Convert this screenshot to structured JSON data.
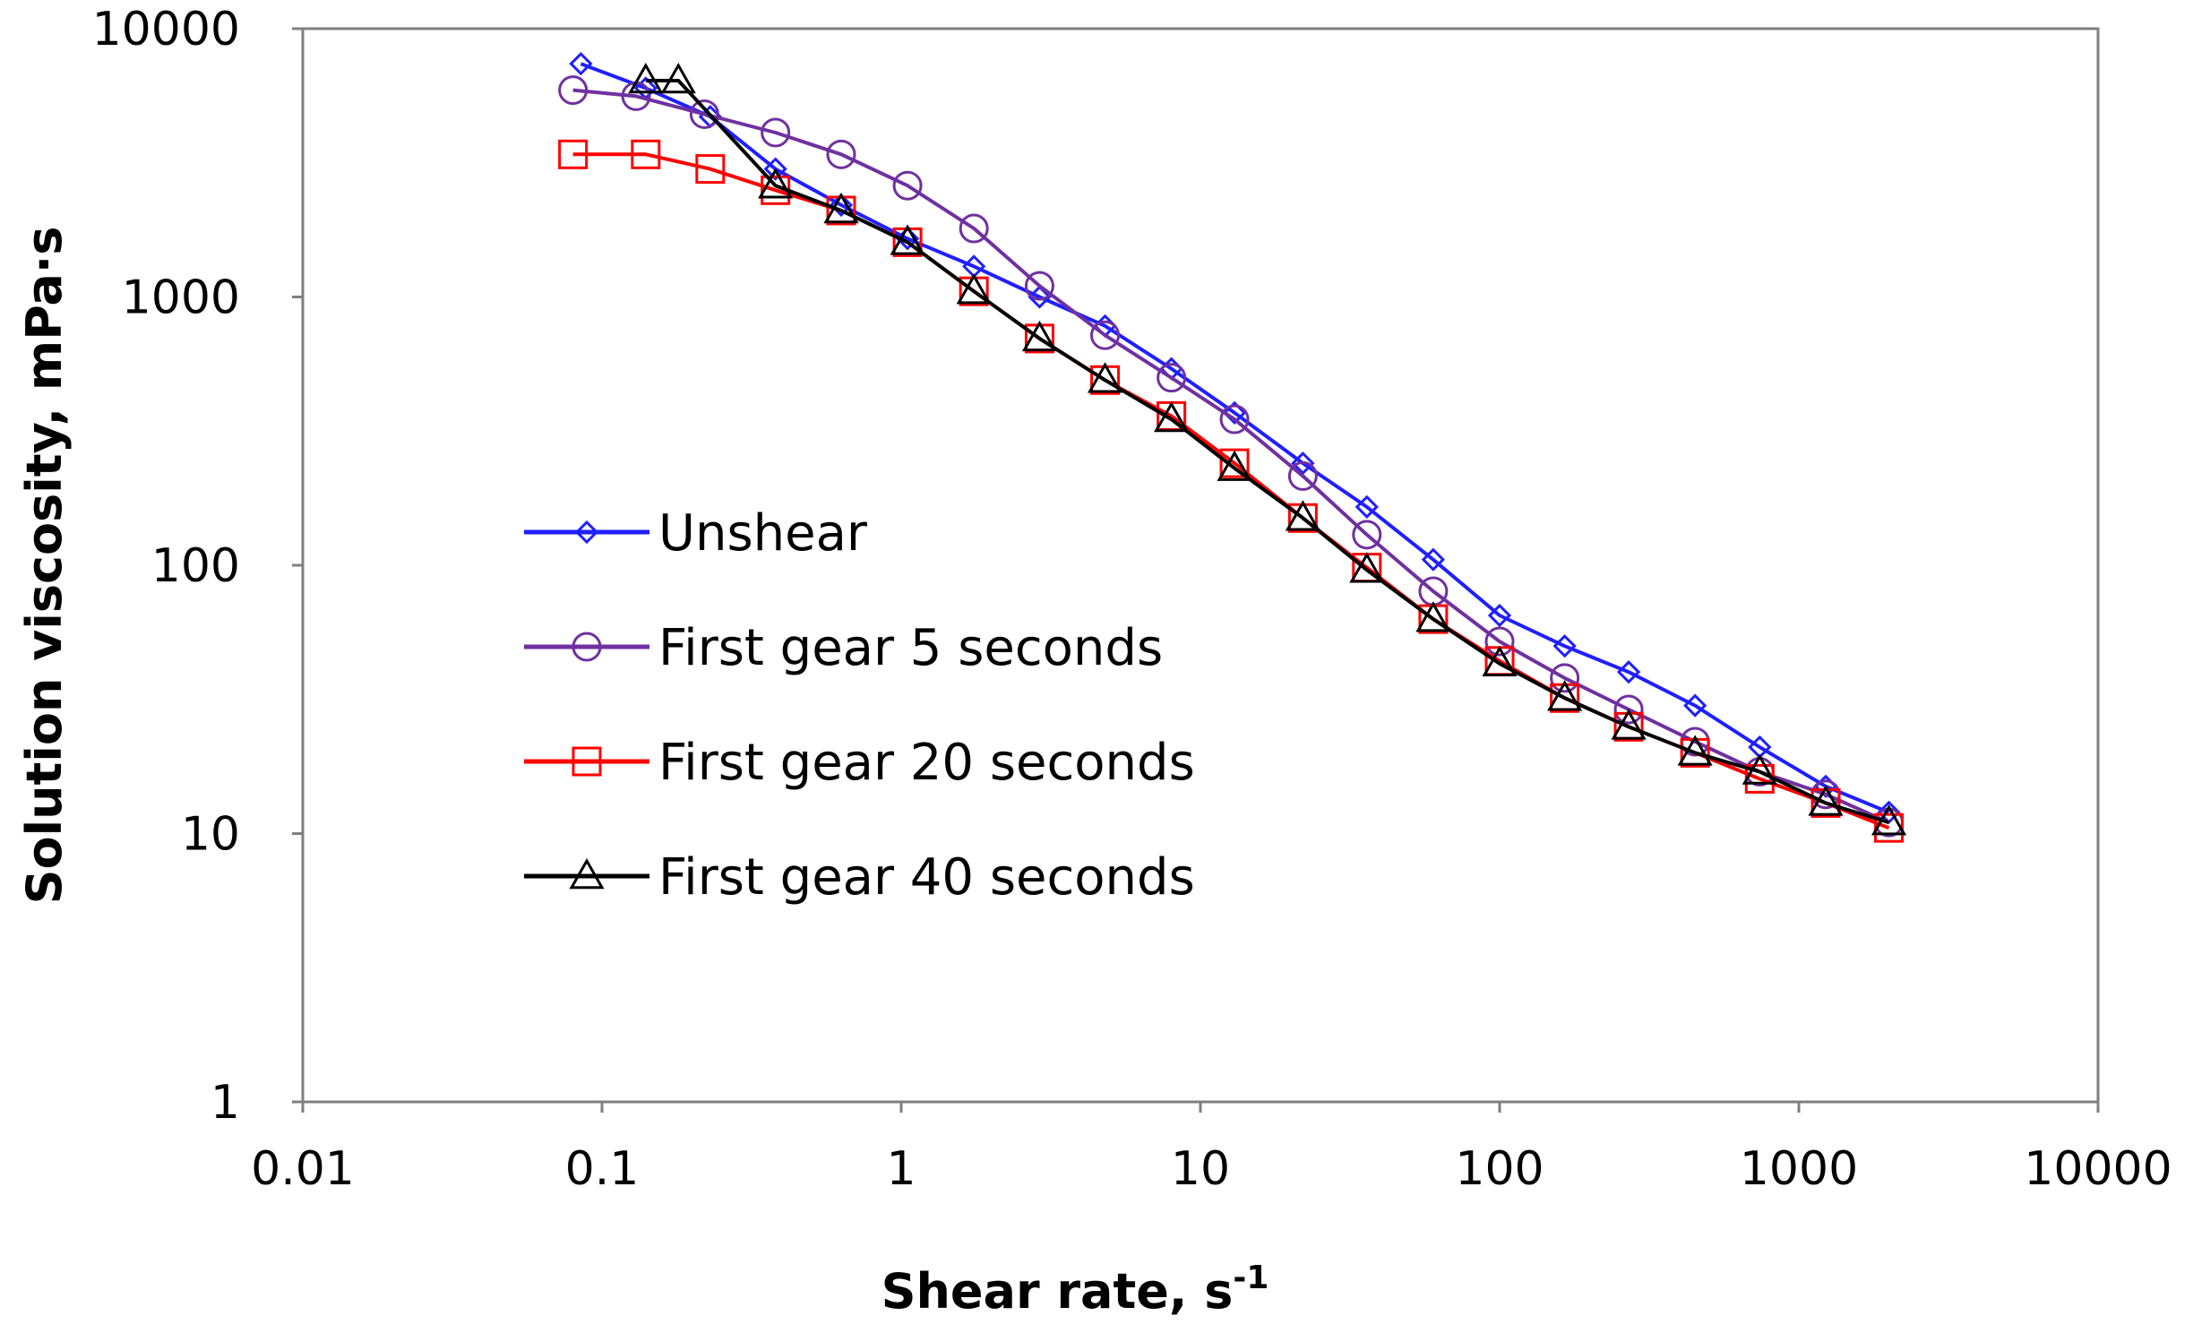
{
  "chart_data": {
    "type": "line",
    "xscale": "log",
    "yscale": "log",
    "xlim": [
      0.01,
      10000
    ],
    "ylim": [
      1,
      10000
    ],
    "xlabel_main": "Shear rate, s",
    "xlabel_sup": "-1",
    "ylabel": "Solution viscosity, mPa·s",
    "x_ticks": [
      "0.01",
      "0.1",
      "1",
      "10",
      "100",
      "1000",
      "10000"
    ],
    "y_ticks": [
      "1",
      "10",
      "100",
      "1000",
      "10000"
    ],
    "x_tick_values": [
      0.01,
      0.1,
      1,
      10,
      100,
      1000,
      10000
    ],
    "y_tick_values": [
      1,
      10,
      100,
      1000,
      10000
    ],
    "grid": false,
    "legend_position": "center-left",
    "series": [
      {
        "name": "Unshear",
        "color": "#1f1fff",
        "marker": "diamond",
        "x": [
          0.085,
          0.14,
          0.23,
          0.38,
          0.63,
          1.05,
          1.75,
          2.9,
          4.8,
          8,
          13,
          22,
          36,
          60,
          100,
          165,
          270,
          450,
          740,
          1230,
          2000
        ],
        "y": [
          7400,
          6000,
          4700,
          3000,
          2200,
          1650,
          1300,
          1000,
          780,
          540,
          370,
          240,
          165,
          105,
          65,
          50,
          40,
          30,
          21,
          15,
          12
        ]
      },
      {
        "name": "First gear 5 seconds",
        "color": "#7030a0",
        "marker": "circle",
        "x": [
          0.08,
          0.13,
          0.22,
          0.38,
          0.63,
          1.05,
          1.75,
          2.9,
          4.8,
          8,
          13,
          22,
          36,
          60,
          100,
          165,
          270,
          450,
          740,
          1230,
          2000
        ],
        "y": [
          5900,
          5600,
          4800,
          4100,
          3400,
          2600,
          1800,
          1100,
          720,
          500,
          350,
          215,
          130,
          80,
          52,
          38,
          29,
          22,
          17,
          14,
          11
        ]
      },
      {
        "name": "First gear 20 seconds",
        "color": "#ff0000",
        "marker": "square",
        "x": [
          0.08,
          0.14,
          0.23,
          0.38,
          0.63,
          1.05,
          1.75,
          2.9,
          4.8,
          8,
          13,
          22,
          36,
          60,
          100,
          165,
          270,
          450,
          740,
          1230,
          2000
        ],
        "y": [
          3400,
          3400,
          3000,
          2500,
          2100,
          1600,
          1050,
          700,
          490,
          360,
          240,
          150,
          98,
          63,
          44,
          32,
          25,
          20,
          16,
          13,
          10.5
        ]
      },
      {
        "name": "First gear 40 seconds",
        "color": "#000000",
        "marker": "triangle",
        "x": [
          0.14,
          0.18,
          0.38,
          0.63,
          1.05,
          1.75,
          2.9,
          4.8,
          8,
          13,
          22,
          36,
          60,
          100,
          165,
          270,
          450,
          740,
          1230,
          2000
        ],
        "y": [
          6400,
          6400,
          2600,
          2100,
          1600,
          1050,
          700,
          490,
          350,
          230,
          150,
          96,
          63,
          43,
          32,
          25,
          20,
          17,
          13,
          11
        ]
      }
    ]
  }
}
